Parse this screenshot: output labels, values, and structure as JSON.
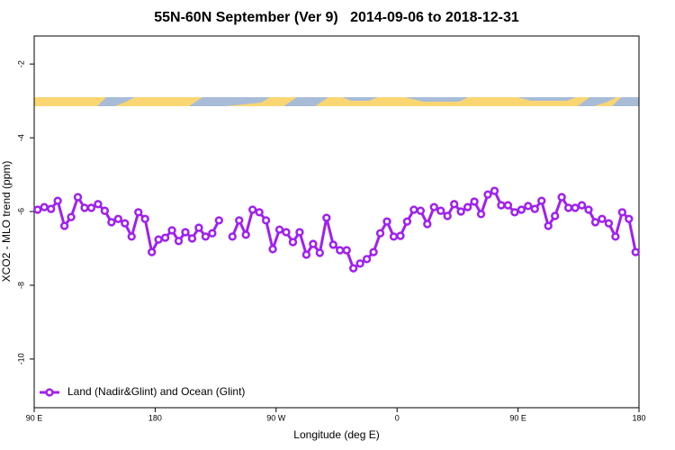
{
  "chart_data": {
    "type": "line",
    "title": "55N-60N September (Ver 9)   2014-09-06 to 2018-12-31",
    "xlabel": "Longitude (deg E)",
    "ylabel": "XCO2 - MLO trend (ppm)",
    "xlim": [
      90,
      540
    ],
    "ylim": [
      -11.32,
      -1.24
    ],
    "xticks": [
      {
        "value": 90,
        "label": "90 E"
      },
      180,
      {
        "value": 270,
        "label": "90 W"
      },
      {
        "value": 360,
        "label": "0"
      },
      {
        "value": 450,
        "label": "90 E"
      },
      {
        "value": 540,
        "label": "180"
      }
    ],
    "yticks": [
      -10,
      -8,
      -6,
      -4,
      -2
    ],
    "grid": false,
    "legend": "bottomleft",
    "x": [
      92.5,
      97.5,
      102.5,
      107.5,
      112.5,
      117.5,
      122.5,
      127.5,
      132.5,
      137.5,
      142.5,
      147.5,
      152.5,
      157.5,
      162.5,
      167.5,
      172.5,
      177.5,
      182.5,
      187.5,
      192.5,
      197.5,
      202.5,
      207.5,
      212.5,
      217.5,
      222.5,
      227.5,
      232.5,
      237.5,
      242.5,
      247.5,
      252.5,
      257.5,
      262.5,
      267.5,
      272.5,
      277.5,
      282.5,
      287.5,
      292.5,
      297.5,
      302.5,
      307.5,
      312.5,
      317.5,
      322.5,
      327.5,
      332.5,
      337.5,
      342.5,
      347.5,
      352.5,
      357.5,
      362.5,
      367.5,
      372.5,
      377.5,
      382.5,
      387.5,
      392.5,
      397.5,
      402.5,
      407.5,
      412.5,
      417.5,
      422.5,
      427.5,
      432.5,
      437.5,
      442.5,
      447.5,
      452.5,
      457.5,
      462.5,
      467.5,
      472.5,
      477.5,
      482.5,
      487.5,
      492.5,
      497.5,
      502.5,
      507.5,
      512.5,
      517.5,
      522.5,
      527.5,
      532.5,
      537.5
    ],
    "series": [
      {
        "name": "Land (Nadir&Glint) and Ocean (Glint)",
        "color": "#a020f0",
        "values": [
          -5.95,
          -5.88,
          -5.93,
          -5.71,
          -6.39,
          -6.15,
          -5.61,
          -5.9,
          -5.9,
          -5.8,
          -5.98,
          -6.29,
          -6.2,
          -6.32,
          -6.68,
          -6.02,
          -6.2,
          -7.1,
          -6.76,
          -6.71,
          -6.51,
          -6.8,
          -6.56,
          -6.73,
          -6.44,
          -6.68,
          -6.59,
          -6.24,
          null,
          -6.68,
          -6.24,
          -6.63,
          -5.95,
          -6.02,
          -6.24,
          -7.02,
          -6.49,
          -6.56,
          -6.83,
          -6.56,
          -7.17,
          -6.88,
          -7.12,
          -6.17,
          -6.9,
          -7.05,
          -7.05,
          -7.54,
          -7.41,
          -7.29,
          -7.1,
          -6.59,
          -6.27,
          -6.68,
          -6.66,
          -6.27,
          -5.95,
          -5.98,
          -6.34,
          -5.88,
          -5.98,
          -6.12,
          -5.8,
          -6.0,
          -5.88,
          -5.73,
          -6.07,
          -5.54,
          -5.44,
          -5.83,
          -5.83,
          -6.02,
          -5.95,
          -5.85,
          -5.93,
          -5.71,
          -6.39,
          -6.12,
          -5.61,
          -5.9,
          -5.9,
          -5.83,
          -5.95,
          -6.29,
          -6.2,
          -6.32,
          -6.68,
          -6.02,
          -6.2,
          -7.1
        ]
      }
    ]
  }
}
